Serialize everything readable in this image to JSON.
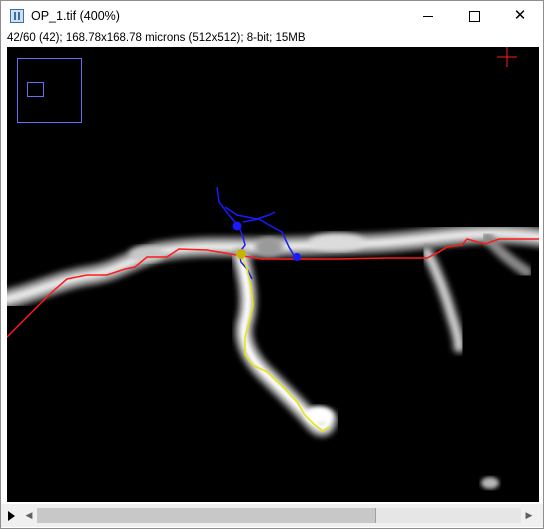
{
  "window": {
    "title": "OP_1.tif (400%)",
    "minimize_symbol": "",
    "maximize_symbol": "",
    "close_symbol": "✕"
  },
  "image_info": "42/60 (42); 168.78x168.78 microns (512x512); 8-bit; 15MB",
  "colors": {
    "trace_red": "#ff1a1a",
    "trace_blue": "#1a1aff",
    "trace_yellow": "#e6e600",
    "navigator_border": "#6b6bff",
    "cursor_cross": "#ff2020"
  },
  "icons": {
    "app": "imagej-icon",
    "stack_play": "play-icon",
    "scroll_left": "chevron-left-icon",
    "scroll_right": "chevron-right-icon"
  },
  "scrollbar": {
    "left_glyph": "◀",
    "right_glyph": "▶",
    "position_fraction": 0.7
  }
}
